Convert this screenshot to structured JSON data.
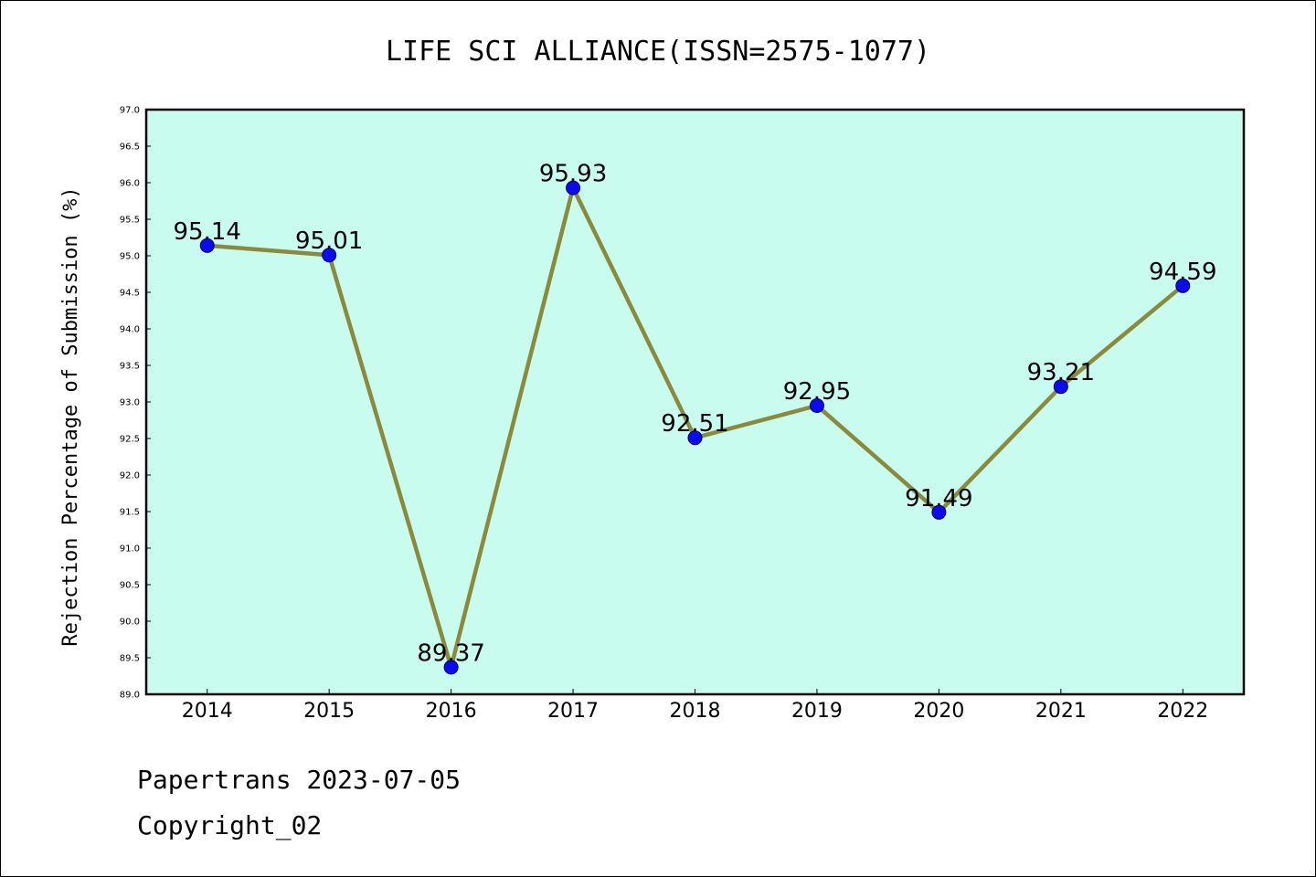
{
  "chart_data": {
    "type": "line",
    "title": "LIFE SCI ALLIANCE(ISSN=2575-1077)",
    "ylabel": "Rejection Percentage of Submission (%)",
    "xlabel": "",
    "categories": [
      "2014",
      "2015",
      "2016",
      "2017",
      "2018",
      "2019",
      "2020",
      "2021",
      "2022"
    ],
    "values": [
      95.14,
      95.01,
      89.37,
      95.93,
      92.51,
      92.95,
      91.49,
      93.21,
      94.59
    ],
    "data_labels": [
      "95.14",
      "95.01",
      "89.37",
      "95.93",
      "92.51",
      "92.95",
      "91.49",
      "93.21",
      "94.59"
    ],
    "ylim": [
      89.0,
      97.0
    ],
    "yticks": [
      "89.0",
      "89.5",
      "90.0",
      "90.5",
      "91.0",
      "91.5",
      "92.0",
      "92.5",
      "93.0",
      "93.5",
      "94.0",
      "94.5",
      "95.0",
      "95.5",
      "96.0",
      "96.5",
      "97.0"
    ],
    "grid": false,
    "colors": {
      "plot_background": "#c8fcee",
      "line": "#8b8a3a",
      "marker": "#0a0af5"
    }
  },
  "footer": {
    "line1": "Papertrans 2023-07-05",
    "line2": "Copyright_02"
  }
}
